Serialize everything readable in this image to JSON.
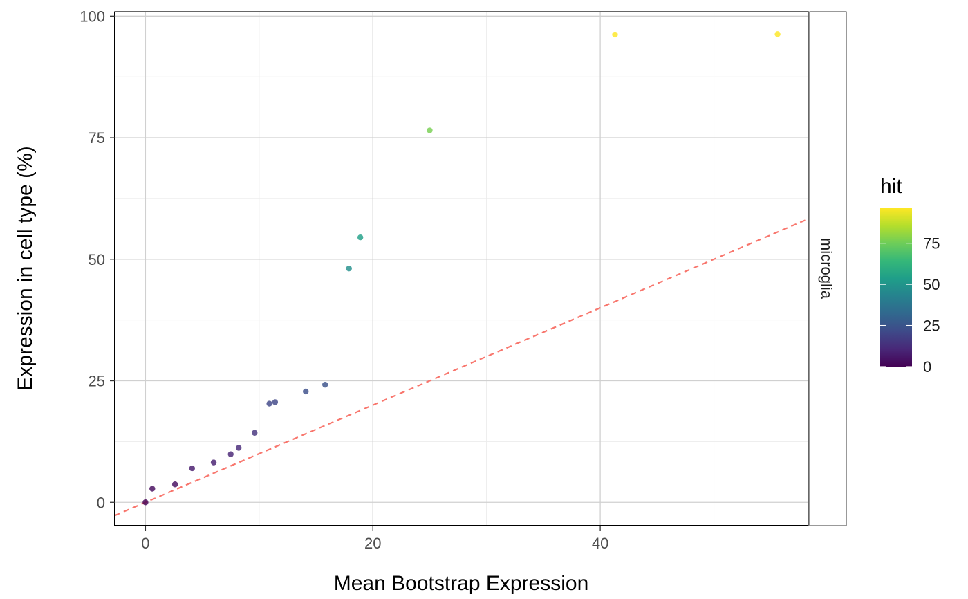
{
  "chart_data": {
    "type": "scatter",
    "title": "",
    "xlabel": "Mean Bootstrap Expression",
    "ylabel": "Expression in cell type (%)",
    "facet_label": "microglia",
    "xlim": [
      -2.7,
      58.3
    ],
    "ylim": [
      -4.8,
      100.9
    ],
    "x_ticks": [
      0,
      20,
      40
    ],
    "x_minor_ticks": [
      10,
      30,
      50
    ],
    "y_ticks": [
      0,
      25,
      50,
      75,
      100
    ],
    "y_minor_ticks": [
      12.5,
      37.5,
      62.5,
      87.5
    ],
    "grid": true,
    "reference_line": {
      "slope": 1,
      "intercept": 0,
      "style": "dashed",
      "color": "#F8766D"
    },
    "color_legend": {
      "title": "hit",
      "placement": "right",
      "range": [
        0,
        96.3
      ],
      "ticks": [
        0,
        25,
        50,
        75
      ],
      "palette": [
        "#440154",
        "#482878",
        "#3E4A89",
        "#31688E",
        "#26828E",
        "#1F9E89",
        "#35B779",
        "#6DCD59",
        "#B4DE2C",
        "#FDE725"
      ]
    },
    "points": [
      {
        "x": 0.0,
        "y": 0.0,
        "hit": 0.0
      },
      {
        "x": 0.6,
        "y": 2.8,
        "hit": 2.8
      },
      {
        "x": 2.6,
        "y": 3.7,
        "hit": 3.7
      },
      {
        "x": 4.1,
        "y": 7.0,
        "hit": 7.0
      },
      {
        "x": 6.0,
        "y": 8.2,
        "hit": 8.2
      },
      {
        "x": 7.5,
        "y": 9.9,
        "hit": 9.9
      },
      {
        "x": 8.2,
        "y": 11.2,
        "hit": 11.2
      },
      {
        "x": 9.6,
        "y": 14.3,
        "hit": 14.3
      },
      {
        "x": 10.9,
        "y": 20.3,
        "hit": 20.3
      },
      {
        "x": 11.4,
        "y": 20.6,
        "hit": 20.6
      },
      {
        "x": 14.1,
        "y": 22.8,
        "hit": 22.8
      },
      {
        "x": 15.8,
        "y": 24.2,
        "hit": 24.2
      },
      {
        "x": 17.9,
        "y": 48.1,
        "hit": 48.1
      },
      {
        "x": 18.9,
        "y": 54.5,
        "hit": 54.5
      },
      {
        "x": 25.0,
        "y": 76.5,
        "hit": 76.5
      },
      {
        "x": 41.3,
        "y": 96.2,
        "hit": 96.2
      },
      {
        "x": 55.6,
        "y": 96.3,
        "hit": 96.3
      }
    ]
  }
}
